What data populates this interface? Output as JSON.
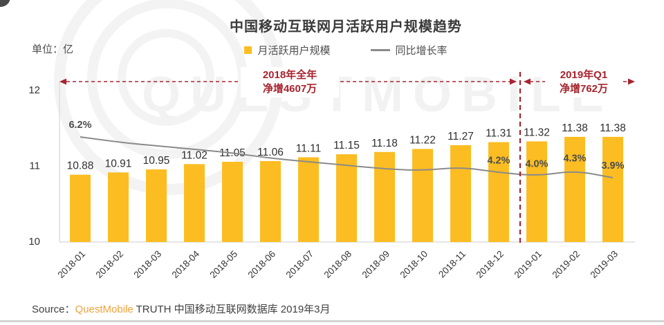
{
  "page": {
    "title": "中国移动互联网月活跃用户规模趋势",
    "unit_label": "单位：亿"
  },
  "legend": [
    {
      "label": "月活跃用户规模",
      "marker": "bar"
    },
    {
      "label": "同比增长率",
      "marker": "line"
    }
  ],
  "annotations": {
    "left": {
      "line1": "2018年全年",
      "line2": "净增4607万"
    },
    "right": {
      "line1": "2019年Q1",
      "line2": "净增762万"
    }
  },
  "source": {
    "prefix": "Source：",
    "brand": "QuestMobile",
    "suffix": " TRUTH 中国移动互联网数据库 2019年3月"
  },
  "watermark": {
    "text": "QUESTMOBILE"
  },
  "colors": {
    "bar": "#FBBD22",
    "line": "#8a8a8a",
    "red": "#A8232E",
    "axis": "#dedede",
    "bar_label": "#2e2e2e",
    "growth_label": "#4d4d4d",
    "tick_label": "#333333",
    "brand_orange": "#F0A23C"
  },
  "chart_data": {
    "type": "bar",
    "title": "中国移动互联网月活跃用户规模趋势",
    "categories": [
      "2018-01",
      "2018-02",
      "2018-03",
      "2018-04",
      "2018-05",
      "2018-06",
      "2018-07",
      "2018-08",
      "2018-09",
      "2018-10",
      "2018-11",
      "2018-12",
      "2019-01",
      "2019-02",
      "2019-03"
    ],
    "series": [
      {
        "name": "月活跃用户规模",
        "type": "bar",
        "unit": "亿",
        "values": [
          10.88,
          10.91,
          10.95,
          11.02,
          11.05,
          11.06,
          11.11,
          11.15,
          11.18,
          11.22,
          11.27,
          11.31,
          11.32,
          11.38,
          11.38
        ]
      },
      {
        "name": "同比增长率",
        "type": "line",
        "unit": "%",
        "values": [
          6.2,
          5.9,
          5.7,
          5.5,
          5.3,
          5.0,
          4.8,
          4.6,
          4.4,
          4.3,
          4.5,
          4.2,
          4.0,
          4.3,
          3.9
        ],
        "shown_labels": [
          {
            "index": 0,
            "text": "6.2%"
          },
          {
            "index": 11,
            "text": "4.2%"
          },
          {
            "index": 12,
            "text": "4.0%"
          },
          {
            "index": 13,
            "text": "4.3%"
          },
          {
            "index": 14,
            "text": "3.9%"
          }
        ]
      }
    ],
    "y_axis": {
      "ticks": [
        10,
        11,
        12
      ],
      "range": [
        10,
        12.2
      ],
      "grid": false
    },
    "secondary_axis_labels_visible": false,
    "legend_position": "top",
    "divider_after_category": "2018-12"
  }
}
